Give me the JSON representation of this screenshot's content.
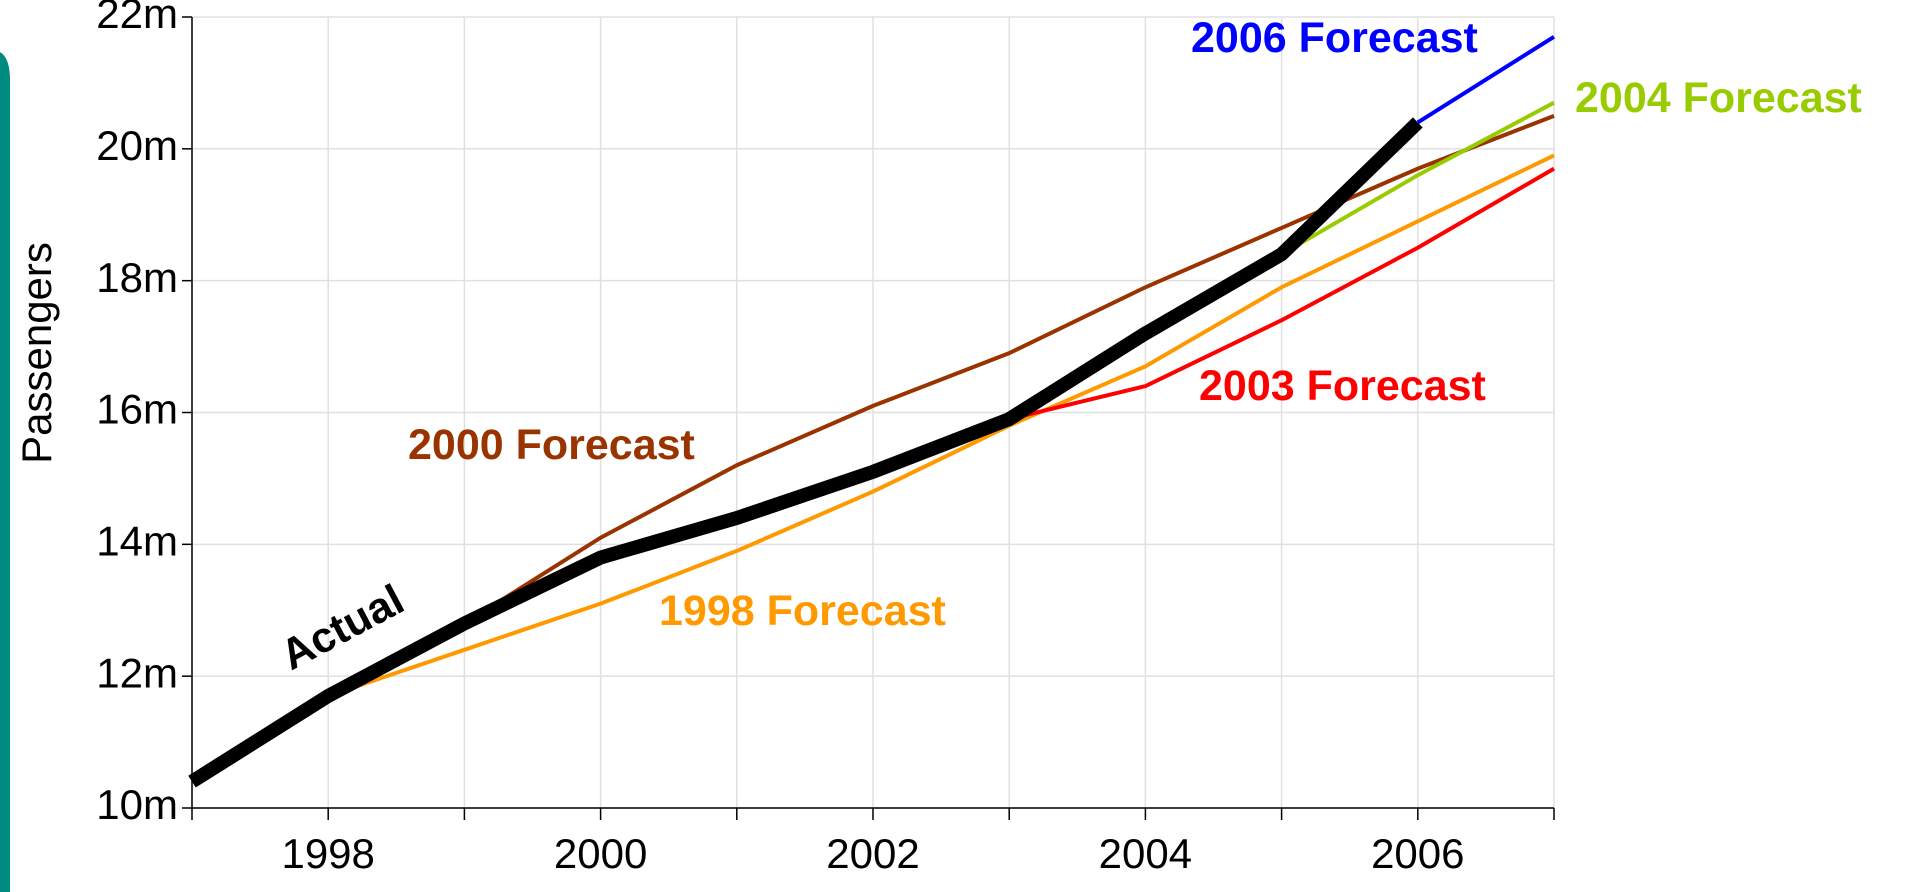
{
  "chart_data": {
    "type": "line",
    "y_label": "Passengers",
    "x": [
      1997,
      1998,
      1999,
      2000,
      2001,
      2002,
      2003,
      2004,
      2005,
      2006,
      2007
    ],
    "xlim": [
      1997,
      2007
    ],
    "xticks": [
      1998,
      2000,
      2002,
      2004,
      2006
    ],
    "xminor": [
      1997,
      1999,
      2001,
      2003,
      2005,
      2007
    ],
    "ylim": [
      10,
      22
    ],
    "yticks": [
      {
        "value": 10,
        "label": "10m"
      },
      {
        "value": 12,
        "label": "12m"
      },
      {
        "value": 14,
        "label": "14m"
      },
      {
        "value": 16,
        "label": "16m"
      },
      {
        "value": 18,
        "label": "18m"
      },
      {
        "value": 20,
        "label": "20m"
      },
      {
        "value": 22,
        "label": "22m"
      }
    ],
    "grid": true,
    "series": [
      {
        "name": "1998 Forecast",
        "color": "#ff9900",
        "values": [
          null,
          11.7,
          12.4,
          13.1,
          13.9,
          14.8,
          15.8,
          16.7,
          17.9,
          18.9,
          19.9
        ]
      },
      {
        "name": "2000 Forecast",
        "color": "#993300",
        "values": [
          null,
          null,
          12.8,
          14.1,
          15.2,
          16.1,
          16.9,
          17.9,
          18.8,
          19.7,
          20.5
        ]
      },
      {
        "name": "2003 Forecast",
        "color": "#ff0000",
        "values": [
          null,
          null,
          null,
          null,
          null,
          null,
          15.9,
          16.4,
          17.4,
          18.5,
          19.7
        ]
      },
      {
        "name": "2004 Forecast",
        "color": "#99cc00",
        "values": [
          null,
          null,
          null,
          null,
          null,
          null,
          null,
          17.2,
          18.4,
          19.6,
          20.7
        ]
      },
      {
        "name": "2006 Forecast",
        "color": "#0000ff",
        "values": [
          null,
          null,
          null,
          null,
          null,
          null,
          null,
          null,
          null,
          20.4,
          21.7
        ]
      },
      {
        "name": "Actual",
        "color": "#000000",
        "values": [
          10.4,
          11.7,
          12.8,
          13.8,
          14.4,
          15.1,
          15.9,
          17.2,
          18.4,
          20.4,
          null
        ]
      }
    ]
  }
}
